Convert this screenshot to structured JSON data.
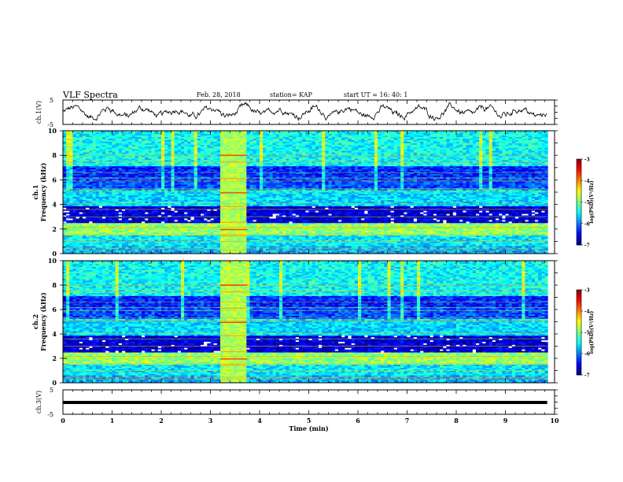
{
  "header": {
    "title": "VLF Spectra",
    "date": "Feb. 28, 2018",
    "station": "station= KAP",
    "start": "start  UT =   16: 40: 1"
  },
  "chart_data": [
    {
      "id": "ch1-waveform",
      "type": "line",
      "ylabel": "ch.1(V)",
      "ylim": [
        -5,
        5
      ],
      "yticks": [
        "5",
        "-5"
      ],
      "xlim": [
        0,
        10
      ],
      "series": [
        {
          "values_description_free": true
        }
      ],
      "color": "#000000"
    },
    {
      "id": "ch1-spectrogram",
      "type": "heatmap",
      "ylabel_lines": [
        "ch.1",
        "Frequency (kHz)"
      ],
      "ylim": [
        0,
        10
      ],
      "yticks": [
        "0",
        "2",
        "4",
        "6",
        "8",
        "10"
      ],
      "xlim": [
        0,
        10
      ],
      "colorbar": {
        "label": "log(PSD)(V²/Hz)",
        "range": [
          -7,
          -3
        ],
        "ticks": [
          "-3",
          "-4",
          "-5",
          "-6",
          "-7"
        ]
      },
      "burst_interval_min": [
        3.2,
        3.75
      ]
    },
    {
      "id": "ch2-spectrogram",
      "type": "heatmap",
      "ylabel_lines": [
        "ch.2",
        "Frequency (kHz)"
      ],
      "ylim": [
        0,
        10
      ],
      "yticks": [
        "0",
        "2",
        "4",
        "6",
        "8",
        "10"
      ],
      "xlim": [
        0,
        10
      ],
      "colorbar": {
        "label": "log(PSD)(V²/Hz)",
        "range": [
          -7,
          -3
        ],
        "ticks": [
          "-3",
          "-4",
          "-5",
          "-6",
          "-7"
        ]
      },
      "burst_interval_min": [
        3.2,
        3.75
      ]
    },
    {
      "id": "ch3-waveform",
      "type": "line",
      "ylabel": "ch.3(V)",
      "ylim": [
        -5,
        5
      ],
      "yticks": [
        "5",
        "-5"
      ],
      "xlim": [
        0,
        10
      ],
      "series": [
        {
          "constant_value": 0,
          "x_end": 9.85
        }
      ],
      "xlabel": "Time  (min)",
      "xticks": [
        "0",
        "1",
        "2",
        "3",
        "4",
        "5",
        "6",
        "7",
        "8",
        "9",
        "10"
      ]
    }
  ],
  "colors": {
    "axis": "#000000",
    "colormap": [
      "#00007f",
      "#0000ff",
      "#0080ff",
      "#00ffff",
      "#80ff80",
      "#ffff00",
      "#ff8000",
      "#ff0000",
      "#7f0000"
    ]
  }
}
